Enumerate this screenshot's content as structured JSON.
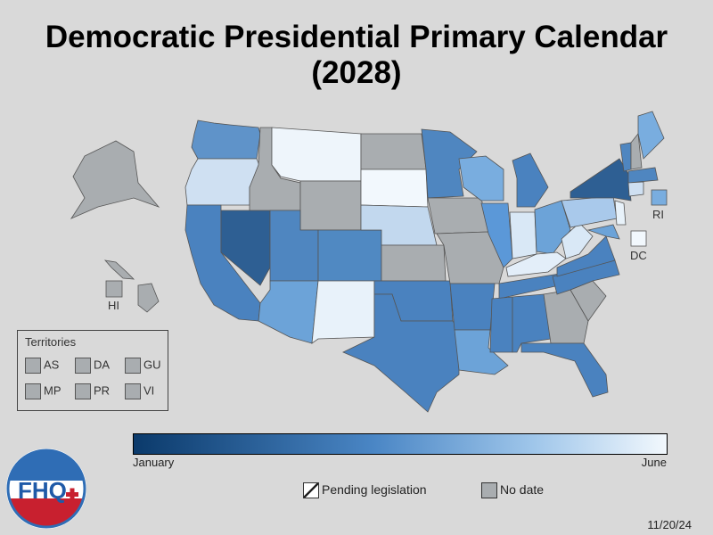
{
  "title_line1": "Democratic Presidential Primary Calendar",
  "title_line2": "(2028)",
  "colors": {
    "background": "#d9d9d9",
    "no_date": "#a9adb0",
    "gradient_january": "#0b3a6b",
    "gradient_june": "#f2f8fd"
  },
  "state_labels": {
    "ri": "RI",
    "dc": "DC",
    "hi": "HI"
  },
  "territories": {
    "heading": "Territories",
    "items": [
      "AS",
      "DA",
      "GU",
      "MP",
      "PR",
      "VI"
    ]
  },
  "gradient_legend": {
    "start": "January",
    "end": "June"
  },
  "legend": {
    "pending": "Pending legislation",
    "nodate": "No date"
  },
  "date_stamp": "11/20/24",
  "logo_text": "FHQ"
}
